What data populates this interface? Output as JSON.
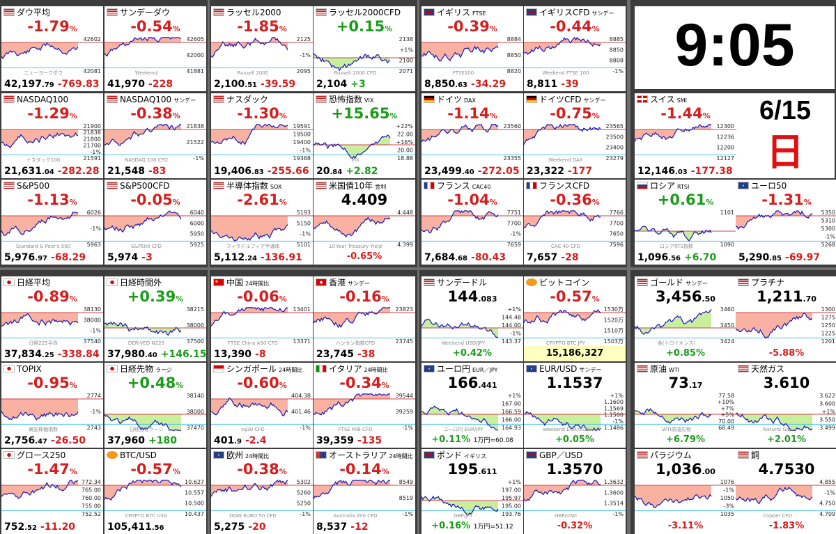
{
  "clock": {
    "time": "9:05",
    "date": "6/15",
    "weekday": "日"
  },
  "colors": {
    "down_fill": "#f9b2a2",
    "up_fill": "#c9ef9e",
    "line": "#1515c0",
    "down_text": "#d61d1d",
    "up_text": "#1a9c1a"
  },
  "tiles": [
    {
      "id": "dow",
      "name": "ダウ平均",
      "sub": "",
      "flag": "us",
      "pct": "-1.79",
      "price_main": "42,197",
      "price_dec": ".79",
      "chg": "-769.83",
      "tone": "down",
      "levels": [
        "42602",
        "42081"
      ],
      "wm": "ニューヨークダウ"
    },
    {
      "id": "sunday-dow",
      "name": "サンデーダウ",
      "sub": "",
      "flag": "us",
      "pct": "-0.54",
      "price_main": "41,970",
      "price_dec": "",
      "chg": "-228",
      "tone": "down",
      "levels": [
        "42605",
        "42000",
        "41881"
      ],
      "wm": "Weekend"
    },
    {
      "id": "russell2000",
      "name": "ラッセル2000",
      "sub": "",
      "flag": "us",
      "pct": "-1.85",
      "price_main": "2,100",
      "price_dec": ".51",
      "chg": "-39.59",
      "tone": "down",
      "levels": [
        "2125",
        "-1%",
        "2095"
      ],
      "wm": "Russell 2000"
    },
    {
      "id": "russell2000-cfd",
      "name": "ラッセル2000CFD",
      "sub": "",
      "flag": "us",
      "pct": "+0.15",
      "price_main": "2,104",
      "price_dec": "",
      "chg": "+3",
      "tone": "up",
      "levels": [
        "2138",
        "+1%",
        "2100",
        "2071"
      ],
      "wm": "Russell 2000 CFD"
    },
    {
      "id": "uk",
      "name": "イギリス",
      "sub": "FTSE",
      "flag": "uk",
      "pct": "-0.39",
      "price_main": "8,850",
      "price_dec": ".63",
      "chg": "-34.29",
      "tone": "down",
      "levels": [
        "8884",
        "8850",
        "8820"
      ],
      "wm": "FTSE100"
    },
    {
      "id": "uk-cfd",
      "name": "イギリスCFD",
      "sub": "サンデー",
      "flag": "uk",
      "pct": "-0.44",
      "price_main": "8,811",
      "price_dec": "",
      "chg": "-39",
      "tone": "down",
      "levels": [
        "8885",
        "8850",
        "8808",
        "-1%"
      ],
      "wm": "Weekend FTSE 100"
    },
    {
      "id": "nasdaq100",
      "name": "NASDAQ100",
      "sub": "",
      "flag": "us",
      "pct": "-1.29",
      "price_main": "21,631",
      "price_dec": ".04",
      "chg": "-282.28",
      "tone": "down",
      "levels": [
        "21900",
        "21838",
        "21800",
        "21700",
        "-1%",
        "21591"
      ],
      "wm": "ナスダック100"
    },
    {
      "id": "nasdaq100-sunday",
      "name": "NASDAQ100",
      "sub": "サンデー",
      "flag": "us",
      "pct": "-0.38",
      "price_main": "21,548",
      "price_dec": "",
      "chg": "-83",
      "tone": "down",
      "levels": [
        "21838",
        "21522",
        "-1%"
      ],
      "wm": "NASDAQ 100 CFD"
    },
    {
      "id": "nasdaq",
      "name": "ナスダック",
      "sub": "",
      "flag": "us",
      "pct": "-1.30",
      "price_main": "19,406",
      "price_dec": ".83",
      "chg": "-255.66",
      "tone": "down",
      "levels": [
        "19591",
        "19500",
        "19400",
        "-1%",
        "19368"
      ],
      "wm": ""
    },
    {
      "id": "vix",
      "name": "恐怖指数",
      "sub": "VIX",
      "flag": "us",
      "pct": "+15.65",
      "price_main": "20",
      "price_dec": ".84",
      "chg": "+2.82",
      "tone": "up",
      "levels": [
        "+22%",
        "22.00",
        "+16%",
        "20.00",
        "18.88"
      ],
      "wm": "VIX"
    },
    {
      "id": "germany",
      "name": "ドイツ",
      "sub": "DAX",
      "flag": "de",
      "pct": "-1.14",
      "price_main": "23,499",
      "price_dec": ".40",
      "chg": "-272.05",
      "tone": "down",
      "levels": [
        "23560",
        "23355"
      ],
      "wm": ""
    },
    {
      "id": "germany-cfd",
      "name": "ドイツCFD",
      "sub": "サンデー",
      "flag": "de",
      "pct": "-0.75",
      "price_main": "23,322",
      "price_dec": "",
      "chg": "-177",
      "tone": "down",
      "levels": [
        "23565",
        "23500",
        "23400",
        "23279"
      ],
      "wm": "Weekend DAX"
    },
    {
      "id": "swiss",
      "name": "スイス",
      "sub": "SMI",
      "flag": "ch",
      "pct": "-1.44",
      "price_main": "12,146",
      "price_dec": ".03",
      "chg": "-177.38",
      "tone": "down",
      "levels": [
        "12300",
        "12236",
        "12200",
        "12127"
      ],
      "wm": ""
    },
    {
      "id": "sp500",
      "name": "S&P500",
      "sub": "",
      "flag": "us",
      "pct": "-1.13",
      "price_main": "5,976",
      "price_dec": ".97",
      "chg": "-68.29",
      "tone": "down",
      "levels": [
        "6026",
        "-1%",
        "5963"
      ],
      "wm": "Standard & Poor's 500"
    },
    {
      "id": "sp500-cfd",
      "name": "S&P500CFD",
      "sub": "",
      "flag": "us",
      "pct": "-0.05",
      "price_main": "5,974",
      "price_dec": "",
      "chg": "-3",
      "tone": "down",
      "levels": [
        "6040",
        "6000",
        "5950",
        "5925"
      ],
      "wm": "S&P500 CFD"
    },
    {
      "id": "sox",
      "name": "半導体指数",
      "sub": "SOX",
      "flag": "us",
      "pct": "-2.61",
      "price_main": "5,112",
      "price_dec": ".24",
      "chg": "-136.91",
      "tone": "down",
      "levels": [
        "5193",
        "5150",
        "-1%",
        "5101"
      ],
      "wm": "フィラデルフィア半導体"
    },
    {
      "id": "us10y",
      "name": "米国債10年",
      "sub": "金利",
      "flag": "us",
      "pct": "",
      "price_main": "4.409",
      "price_dec": "",
      "chg": "-0.65%",
      "tone": "down",
      "levels": [
        "4.448",
        "4.399"
      ],
      "wm": "10-Year Treasury Yield",
      "layout": "yield"
    },
    {
      "id": "france",
      "name": "フランス",
      "sub": "CAC40",
      "flag": "fr",
      "pct": "-1.04",
      "price_main": "7,684",
      "price_dec": ".68",
      "chg": "-80.43",
      "tone": "down",
      "levels": [
        "7751",
        "7700",
        "-1%",
        "7659"
      ],
      "wm": ""
    },
    {
      "id": "france-cfd",
      "name": "フランスCFD",
      "sub": "",
      "flag": "fr",
      "pct": "-0.36",
      "price_main": "7,657",
      "price_dec": "",
      "chg": "-28",
      "tone": "down",
      "levels": [
        "7766",
        "7700",
        "7650",
        "7596"
      ],
      "wm": "CAC 40 CFD"
    },
    {
      "id": "russia",
      "name": "ロシア",
      "sub": "RTSI",
      "flag": "ru",
      "pct": "+0.61",
      "price_main": "1,096",
      "price_dec": ".56",
      "chg": "+6.70",
      "tone": "up",
      "levels": [
        "1101",
        "1090"
      ],
      "wm": "ロシアRTS指数"
    },
    {
      "id": "euro50",
      "name": "ユーロ50",
      "sub": "",
      "flag": "eu",
      "pct": "-1.31",
      "price_main": "5,290",
      "price_dec": ".85",
      "chg": "-69.97",
      "tone": "down",
      "levels": [
        "5350",
        "5310",
        "5300",
        "-1%",
        "5268"
      ],
      "wm": ""
    },
    {
      "id": "nikkei",
      "name": "日経平均",
      "sub": "",
      "flag": "jp",
      "pct": "-0.89",
      "price_main": "37,834",
      "price_dec": ".25",
      "chg": "-338.84",
      "tone": "down",
      "levels": [
        "38130",
        "38000",
        "-1%",
        "37540"
      ],
      "wm": "日経225平均"
    },
    {
      "id": "nikkei-after",
      "name": "日経時間外",
      "sub": "",
      "flag": "jp",
      "pct": "+0.39",
      "price_main": "37,980",
      "price_dec": ".40",
      "chg": "+146.15",
      "tone": "up",
      "levels": [
        "38215",
        "38000",
        "37500"
      ],
      "wm": "DERIVED N225"
    },
    {
      "id": "china",
      "name": "中国",
      "sub": "24時間比",
      "flag": "cn",
      "pct": "-0.06",
      "price_main": "13,390",
      "price_dec": "",
      "chg": "-8",
      "tone": "down",
      "levels": [
        "13401",
        "13371"
      ],
      "wm": "FTSE China A50 CFD"
    },
    {
      "id": "hongkong",
      "name": "香港",
      "sub": "サンデー",
      "flag": "hk",
      "pct": "-0.16",
      "price_main": "23,745",
      "price_dec": "",
      "chg": "-38",
      "tone": "down",
      "levels": [
        "23823",
        "23745"
      ],
      "wm": "ハンセン指数CFD"
    },
    {
      "id": "sunday-dollar",
      "name": "サンデードル",
      "sub": "",
      "flag": "us",
      "pct": "",
      "price_main": "144",
      "price_dec": ".083",
      "chg": "+0.42%",
      "tone": "up",
      "levels": [
        "+1%",
        "144.48",
        "144.00",
        "-1%",
        "143.37"
      ],
      "wm": "Weekend USD/JPY",
      "layout": "fx"
    },
    {
      "id": "bitcoin",
      "name": "ビットコイン",
      "sub": "",
      "flag": "btc",
      "pct": "-0.57",
      "price_main": "",
      "price_dec": "",
      "chg": "15,186,327",
      "tone": "down",
      "levels": [
        "1530万",
        "1520万",
        "1510万",
        "1503万"
      ],
      "wm": "CRYPTO BTC JPY",
      "layout": "btc"
    },
    {
      "id": "gold",
      "name": "ゴールド",
      "sub": "サンデー",
      "flag": "us",
      "pct": "",
      "price_main": "3,456",
      "price_dec": ".50",
      "chg": "+0.85%",
      "tone": "up",
      "levels": [
        "3460",
        "3450",
        "3424"
      ],
      "wm": "金(トロイオンス)",
      "layout": "fx"
    },
    {
      "id": "platinum",
      "name": "プラチナ",
      "sub": "",
      "flag": "us",
      "pct": "",
      "price_main": "1,211",
      "price_dec": ".70",
      "chg": "-5.88%",
      "tone": "down",
      "levels": [
        "1300",
        "1275",
        "1250",
        "1225",
        "1201"
      ],
      "wm": "",
      "layout": "fx"
    },
    {
      "id": "topix",
      "name": "TOPIX",
      "sub": "",
      "flag": "jp",
      "pct": "-0.95",
      "price_main": "2,756",
      "price_dec": ".47",
      "chg": "-26.50",
      "tone": "down",
      "levels": [
        "2774",
        "-1%",
        "2743"
      ],
      "wm": "東証株価指数"
    },
    {
      "id": "nikkei-futures",
      "name": "日経先物",
      "sub": "ラージ",
      "flag": "jp",
      "pct": "+0.48",
      "price_main": "37,960",
      "price_dec": "",
      "chg": "+180",
      "tone": "up",
      "levels": [
        "38140",
        "38000",
        "37470"
      ],
      "wm": "日経先物ラージ"
    },
    {
      "id": "singapore",
      "name": "シンガポール",
      "sub": "24時間比",
      "flag": "sg",
      "pct": "-0.60",
      "price_main": "401",
      "price_dec": ".9",
      "chg": "-2.4",
      "tone": "down",
      "levels": [
        "404.38",
        "401.46",
        "-1%"
      ],
      "wm": "sg30 CFD"
    },
    {
      "id": "italy",
      "name": "イタリア",
      "sub": "24時間比",
      "flag": "it",
      "pct": "-0.34",
      "price_main": "39,359",
      "price_dec": "",
      "chg": "-135",
      "tone": "down",
      "levels": [
        "39544",
        "39259",
        "-1%"
      ],
      "wm": "FTSE MIB CFD"
    },
    {
      "id": "eurjpy",
      "name": "ユーロ円",
      "sub": "EUR／JPY",
      "flag": "eu",
      "pct": "",
      "price_main": "166",
      "price_dec": ".441",
      "chg": "+0.11%",
      "tone": "up",
      "levels": [
        "+1%",
        "167.00",
        "166.59",
        "166.00",
        "164.93"
      ],
      "wm": "ユーロ円 EUR/JPY",
      "layout": "fx",
      "extra": "1万円=60.08"
    },
    {
      "id": "eurusd",
      "name": "EUR/USD",
      "sub": "サンデー",
      "flag": "eu",
      "pct": "",
      "price_main": "1.1537",
      "price_dec": "",
      "chg": "+0.05%",
      "tone": "up",
      "levels": [
        "+1%",
        "1.1600",
        "1.1569",
        "1.1500",
        "-1%",
        "1.1486"
      ],
      "wm": "Weekend EUR/USD",
      "layout": "fx"
    },
    {
      "id": "crude",
      "name": "原油",
      "sub": "WTI",
      "flag": "us",
      "pct": "",
      "price_main": "73",
      "price_dec": ".17",
      "chg": "+6.79%",
      "tone": "up",
      "levels": [
        "77.58",
        "+10%",
        "+7%",
        "+5%",
        "70.00",
        "68.49"
      ],
      "wm": "WTI原油先物",
      "layout": "fx"
    },
    {
      "id": "natgas",
      "name": "天然ガス",
      "sub": "",
      "flag": "us",
      "pct": "",
      "price_main": "3.610",
      "price_dec": "",
      "chg": "+2.01%",
      "tone": "up",
      "levels": [
        "3.622",
        "3.600",
        "+1%",
        "3.550",
        "3.499"
      ],
      "wm": "Natural Gas",
      "layout": "fx"
    },
    {
      "id": "growth250",
      "name": "グロース250",
      "sub": "",
      "flag": "jp",
      "pct": "-1.47",
      "price_main": "752",
      "price_dec": ".52",
      "chg": "-11.20",
      "tone": "down",
      "levels": [
        "772.34",
        "765.00",
        "760.00",
        "755.00",
        "752.52"
      ],
      "wm": ""
    },
    {
      "id": "btcusd",
      "name": "BTC/USD",
      "sub": "",
      "flag": "btc",
      "pct": "-0.57",
      "price_main": "105,411",
      "price_dec": ".56",
      "chg": "",
      "tone": "down",
      "levels": [
        "10.627",
        "10.557",
        "10.500",
        "10.437"
      ],
      "wm": "CRYPTO BTC USD"
    },
    {
      "id": "europe",
      "name": "欧州",
      "sub": "24時間比",
      "flag": "eu",
      "pct": "-0.38",
      "price_main": "5,275",
      "price_dec": "",
      "chg": "-20",
      "tone": "down",
      "levels": [
        "5302",
        "5260",
        "5250",
        "-1%"
      ],
      "wm": "DOW EURO 50 CFD"
    },
    {
      "id": "australia",
      "name": "オーストラリア",
      "sub": "24時間比",
      "flag": "au",
      "pct": "-0.14",
      "price_main": "8,537",
      "price_dec": "",
      "chg": "-12",
      "tone": "down",
      "levels": [
        "8549",
        "8519",
        "-1%"
      ],
      "wm": "Australia 200 CFD"
    },
    {
      "id": "gbpjpy",
      "name": "ポンド",
      "sub": "イギリス",
      "flag": "uk",
      "pct": "",
      "price_main": "195",
      "price_dec": ".611",
      "chg": "+0.16%",
      "tone": "up",
      "levels": [
        "+1%",
        "197.00",
        "195.97",
        "195.00",
        "193.76"
      ],
      "wm": "GBP/JPY",
      "layout": "fx",
      "extra": "1万円=51.12"
    },
    {
      "id": "gbpusd",
      "name": "GBP／USD",
      "sub": "",
      "flag": "uk",
      "pct": "",
      "price_main": "1.3570",
      "price_dec": "",
      "chg": "-0.32%",
      "tone": "down",
      "levels": [
        "1.3632",
        "1.3600",
        "1.3514",
        "-1%"
      ],
      "wm": "GBP/USD",
      "layout": "fx"
    },
    {
      "id": "palladium",
      "name": "パラジウム",
      "sub": "",
      "flag": "us",
      "pct": "",
      "price_main": "1,036",
      "price_dec": ".00",
      "chg": "-3.11%",
      "tone": "down",
      "levels": [
        "1076",
        "-1%",
        "1050",
        "-3%",
        "1035"
      ],
      "wm": "",
      "layout": "fx"
    },
    {
      "id": "copper",
      "name": "銅",
      "sub": "",
      "flag": "us",
      "pct": "",
      "price_main": "4.7530",
      "price_dec": "",
      "chg": "-1.83%",
      "tone": "down",
      "levels": [
        "4.855",
        "-1%",
        "4.750",
        "4.709"
      ],
      "wm": "Copper CFD",
      "layout": "fx"
    }
  ]
}
